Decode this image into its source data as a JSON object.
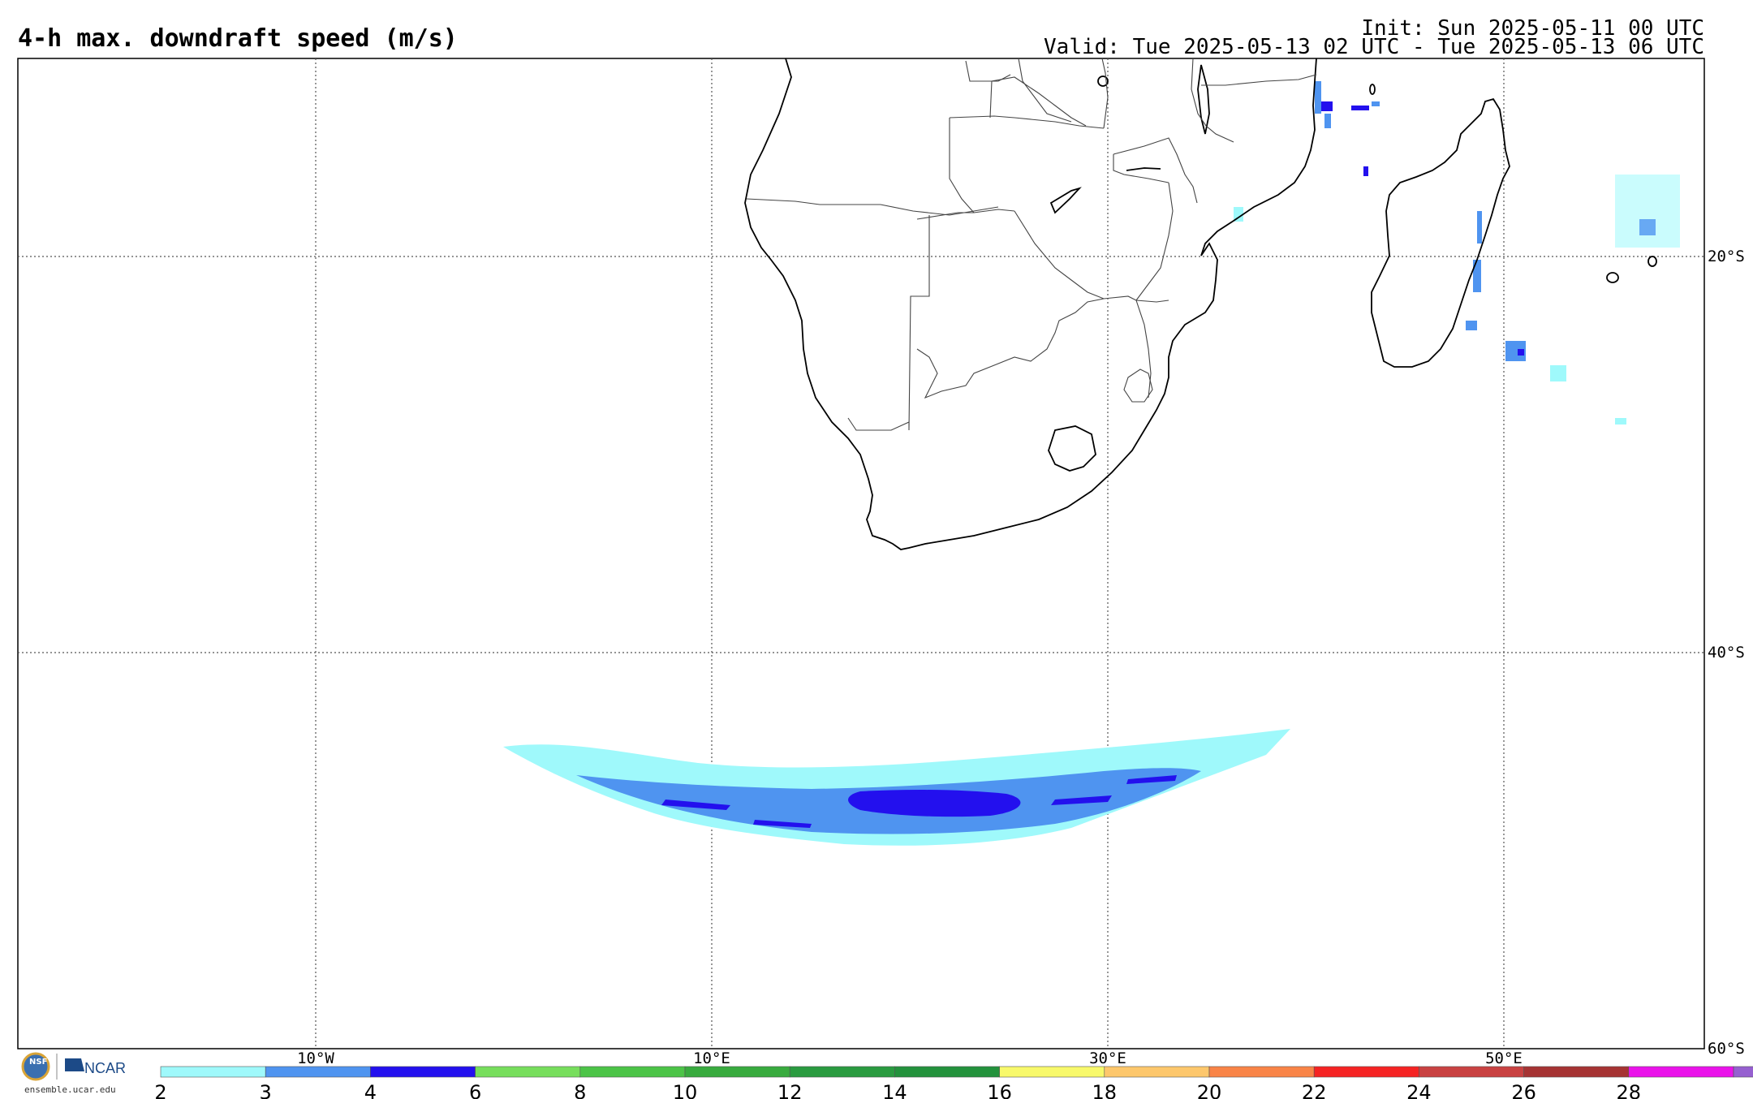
{
  "header": {
    "title": "4-h max. downdraft speed (m/s)",
    "init": "Init: Sun 2025-05-11 00 UTC",
    "valid": "Valid: Tue 2025-05-13 02 UTC - Tue 2025-05-13 06 UTC"
  },
  "map": {
    "lon_labels": [
      "10°W",
      "10°E",
      "30°E",
      "50°E"
    ],
    "lat_labels": [
      "20°S",
      "40°S",
      "60°S"
    ]
  },
  "colorbar": {
    "labels": [
      "2",
      "3",
      "4",
      "6",
      "8",
      "10",
      "12",
      "14",
      "16",
      "18",
      "20",
      "22",
      "24",
      "26",
      "28"
    ],
    "colors": [
      "#9ff9fb",
      "#4f94f0",
      "#2310ee",
      "#77de5c",
      "#4cc447",
      "#38ab3e",
      "#2a9b40",
      "#23923c",
      "#f8f96b",
      "#fdc76c",
      "#f98447",
      "#f52323",
      "#c94242",
      "#a63333",
      "#ea13ea",
      "#9660d0"
    ]
  },
  "logo": {
    "nsf": "NSF",
    "ncar": "NCAR",
    "url": "ensemble.ucar.edu"
  }
}
